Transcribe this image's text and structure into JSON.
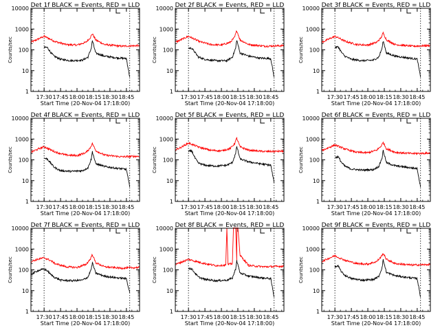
{
  "chart_data": [
    {
      "type": "line",
      "title": "Det 1f BLACK = Events, RED = LLD",
      "xlabel": "Start Time (20-Nov-04 17:18:00)",
      "ylabel": "Counts/sec",
      "ylim": [
        1,
        10000
      ],
      "yscale": "log",
      "xlim": [
        "17:18",
        "18:57"
      ],
      "x_ticks": [
        "17:30",
        "17:45",
        "18:00",
        "18:15",
        "18:30",
        "18:45"
      ],
      "y_ticks": [
        "1",
        "10",
        "100",
        "1000",
        "10000"
      ],
      "vlines": [
        "17:30",
        "18:48"
      ],
      "colors": {
        "events": "#000000",
        "lld": "#ff0000"
      },
      "series": [
        {
          "name": "Events",
          "color": "#000000",
          "x": [
            "17:30",
            "17:33",
            "17:36",
            "17:39",
            "17:45",
            "17:55",
            "18:05",
            "18:10",
            "18:13",
            "18:14",
            "18:17",
            "18:25",
            "18:35",
            "18:45",
            "18:48"
          ],
          "y": [
            130,
            130,
            75,
            50,
            35,
            30,
            32,
            45,
            120,
            280,
            70,
            50,
            42,
            38,
            5
          ]
        },
        {
          "name": "LLD",
          "color": "#ff0000",
          "x": [
            "17:18",
            "17:24",
            "17:30",
            "17:33",
            "17:40",
            "17:50",
            "18:00",
            "18:08",
            "18:12",
            "18:14",
            "18:17",
            "18:25",
            "18:40",
            "18:57"
          ],
          "y": [
            230,
            320,
            450,
            380,
            250,
            180,
            170,
            230,
            380,
            600,
            300,
            180,
            150,
            160
          ]
        }
      ]
    },
    {
      "type": "line",
      "title": "Det 2f BLACK = Events, RED = LLD",
      "xlabel": "Start Time (20-Nov-04 17:18:00)",
      "ylabel": "Counts/sec",
      "ylim": [
        1,
        10000
      ],
      "yscale": "log",
      "xlim": [
        "17:18",
        "18:57"
      ],
      "x_ticks": [
        "17:30",
        "17:45",
        "18:00",
        "18:15",
        "18:30",
        "18:45"
      ],
      "y_ticks": [
        "1",
        "10",
        "100",
        "1000",
        "10000"
      ],
      "vlines": [
        "17:30",
        "18:48"
      ],
      "colors": {
        "events": "#000000",
        "lld": "#ff0000"
      },
      "series": [
        {
          "name": "Events",
          "color": "#000000",
          "x": [
            "17:30",
            "17:33",
            "17:36",
            "17:39",
            "17:45",
            "17:55",
            "18:05",
            "18:10",
            "18:13",
            "18:14",
            "18:17",
            "18:25",
            "18:35",
            "18:45",
            "18:48"
          ],
          "y": [
            120,
            120,
            75,
            45,
            35,
            30,
            30,
            45,
            120,
            300,
            70,
            50,
            40,
            38,
            5
          ]
        },
        {
          "name": "LLD",
          "color": "#ff0000",
          "x": [
            "17:18",
            "17:24",
            "17:30",
            "17:33",
            "17:40",
            "17:50",
            "18:00",
            "18:08",
            "18:12",
            "18:14",
            "18:17",
            "18:25",
            "18:40",
            "18:57"
          ],
          "y": [
            230,
            320,
            450,
            380,
            250,
            180,
            170,
            230,
            400,
            850,
            300,
            180,
            150,
            160
          ]
        }
      ]
    },
    {
      "type": "line",
      "title": "Det 3f BLACK = Events, RED = LLD",
      "xlabel": "Start Time (20-Nov-04 17:18:00)",
      "ylabel": "Counts/sec",
      "ylim": [
        1,
        10000
      ],
      "yscale": "log",
      "xlim": [
        "17:18",
        "18:57"
      ],
      "x_ticks": [
        "17:30",
        "17:45",
        "18:00",
        "18:15",
        "18:30",
        "18:45"
      ],
      "y_ticks": [
        "1",
        "10",
        "100",
        "1000",
        "10000"
      ],
      "vlines": [
        "17:30",
        "18:48"
      ],
      "colors": {
        "events": "#000000",
        "lld": "#ff0000"
      },
      "series": [
        {
          "name": "Events",
          "color": "#000000",
          "x": [
            "17:30",
            "17:33",
            "17:36",
            "17:39",
            "17:45",
            "17:55",
            "18:05",
            "18:10",
            "18:13",
            "18:14",
            "18:17",
            "18:25",
            "18:35",
            "18:45",
            "18:48"
          ],
          "y": [
            130,
            140,
            75,
            50,
            35,
            30,
            32,
            45,
            120,
            270,
            70,
            50,
            42,
            36,
            5
          ]
        },
        {
          "name": "LLD",
          "color": "#ff0000",
          "x": [
            "17:18",
            "17:24",
            "17:30",
            "17:33",
            "17:40",
            "17:50",
            "18:00",
            "18:08",
            "18:12",
            "18:14",
            "18:17",
            "18:25",
            "18:40",
            "18:57"
          ],
          "y": [
            230,
            320,
            450,
            380,
            250,
            180,
            170,
            230,
            380,
            650,
            300,
            180,
            150,
            160
          ]
        }
      ]
    },
    {
      "type": "line",
      "title": "Det 4f BLACK = Events, RED = LLD",
      "xlabel": "Start Time (20-Nov-04 17:18:00)",
      "ylabel": "Counts/sec",
      "ylim": [
        1,
        10000
      ],
      "yscale": "log",
      "xlim": [
        "17:18",
        "18:57"
      ],
      "x_ticks": [
        "17:30",
        "17:45",
        "18:00",
        "18:15",
        "18:30",
        "18:45"
      ],
      "y_ticks": [
        "1",
        "10",
        "100",
        "1000",
        "10000"
      ],
      "vlines": [
        "17:30",
        "18:48"
      ],
      "colors": {
        "events": "#000000",
        "lld": "#ff0000"
      },
      "series": [
        {
          "name": "Events",
          "color": "#000000",
          "x": [
            "17:30",
            "17:33",
            "17:36",
            "17:39",
            "17:45",
            "17:55",
            "18:05",
            "18:10",
            "18:13",
            "18:14",
            "18:17",
            "18:25",
            "18:35",
            "18:45",
            "18:48"
          ],
          "y": [
            120,
            110,
            70,
            45,
            30,
            28,
            30,
            42,
            110,
            250,
            65,
            48,
            40,
            35,
            5
          ]
        },
        {
          "name": "LLD",
          "color": "#ff0000",
          "x": [
            "17:18",
            "17:24",
            "17:30",
            "17:33",
            "17:40",
            "17:50",
            "18:00",
            "18:08",
            "18:12",
            "18:14",
            "18:17",
            "18:25",
            "18:40",
            "18:57"
          ],
          "y": [
            230,
            320,
            430,
            360,
            240,
            170,
            160,
            220,
            380,
            620,
            280,
            170,
            140,
            150
          ]
        }
      ]
    },
    {
      "type": "line",
      "title": "Det 5f BLACK = Events, RED = LLD",
      "xlabel": "Start Time (20-Nov-04 17:18:00)",
      "ylabel": "Counts/sec",
      "ylim": [
        1,
        10000
      ],
      "yscale": "log",
      "xlim": [
        "17:18",
        "18:57"
      ],
      "x_ticks": [
        "17:30",
        "17:45",
        "18:00",
        "18:15",
        "18:30",
        "18:45"
      ],
      "y_ticks": [
        "1",
        "10",
        "100",
        "1000",
        "10000"
      ],
      "vlines": [
        "17:30",
        "18:48"
      ],
      "colors": {
        "events": "#000000",
        "lld": "#ff0000"
      },
      "series": [
        {
          "name": "Events",
          "color": "#000000",
          "x": [
            "17:30",
            "17:33",
            "17:36",
            "17:39",
            "17:45",
            "17:55",
            "18:05",
            "18:10",
            "18:13",
            "18:14",
            "18:17",
            "18:25",
            "18:35",
            "18:45",
            "18:48"
          ],
          "y": [
            250,
            270,
            120,
            70,
            55,
            50,
            55,
            75,
            200,
            450,
            110,
            80,
            65,
            55,
            8
          ]
        },
        {
          "name": "LLD",
          "color": "#ff0000",
          "x": [
            "17:18",
            "17:24",
            "17:30",
            "17:33",
            "17:40",
            "17:50",
            "18:00",
            "18:08",
            "18:12",
            "18:14",
            "18:17",
            "18:25",
            "18:40",
            "18:57"
          ],
          "y": [
            300,
            420,
            650,
            560,
            400,
            290,
            270,
            350,
            600,
            1100,
            420,
            290,
            250,
            260
          ]
        }
      ]
    },
    {
      "type": "line",
      "title": "Det 6f BLACK = Events, RED = LLD",
      "xlabel": "Start Time (20-Nov-04 17:18:00)",
      "ylabel": "Counts/sec",
      "ylim": [
        1,
        10000
      ],
      "yscale": "log",
      "xlim": [
        "17:18",
        "18:57"
      ],
      "x_ticks": [
        "17:30",
        "17:45",
        "18:00",
        "18:15",
        "18:30",
        "18:45"
      ],
      "y_ticks": [
        "1",
        "10",
        "100",
        "1000",
        "10000"
      ],
      "vlines": [
        "17:30",
        "18:48"
      ],
      "colors": {
        "events": "#000000",
        "lld": "#ff0000"
      },
      "series": [
        {
          "name": "Events",
          "color": "#000000",
          "x": [
            "17:30",
            "17:33",
            "17:36",
            "17:39",
            "17:45",
            "17:55",
            "18:05",
            "18:10",
            "18:13",
            "18:14",
            "18:17",
            "18:25",
            "18:35",
            "18:45",
            "18:48"
          ],
          "y": [
            130,
            140,
            75,
            50,
            36,
            32,
            34,
            48,
            125,
            280,
            72,
            52,
            44,
            38,
            5
          ]
        },
        {
          "name": "LLD",
          "color": "#ff0000",
          "x": [
            "17:18",
            "17:24",
            "17:30",
            "17:33",
            "17:40",
            "17:50",
            "18:00",
            "18:08",
            "18:12",
            "18:14",
            "18:17",
            "18:25",
            "18:40",
            "18:57"
          ],
          "y": [
            280,
            380,
            520,
            450,
            320,
            230,
            220,
            290,
            450,
            680,
            340,
            230,
            200,
            210
          ]
        }
      ]
    },
    {
      "type": "line",
      "title": "Det 7f BLACK = Events, RED = LLD",
      "xlabel": "Start Time (20-Nov-04 17:18:00)",
      "ylabel": "Counts/sec",
      "ylim": [
        1,
        10000
      ],
      "yscale": "log",
      "xlim": [
        "17:18",
        "18:57"
      ],
      "x_ticks": [
        "17:30",
        "17:45",
        "18:00",
        "18:15",
        "18:30",
        "18:45"
      ],
      "y_ticks": [
        "1",
        "10",
        "100",
        "1000",
        "10000"
      ],
      "vlines": [
        "17:30",
        "18:48"
      ],
      "colors": {
        "events": "#000000",
        "lld": "#ff0000"
      },
      "series": [
        {
          "name": "Events",
          "color": "#000000",
          "x": [
            "17:18",
            "17:24",
            "17:30",
            "17:33",
            "17:36",
            "17:39",
            "17:45",
            "17:55",
            "18:05",
            "18:10",
            "18:13",
            "18:14",
            "18:17",
            "18:25",
            "18:35",
            "18:45",
            "18:48"
          ],
          "y": [
            60,
            90,
            110,
            90,
            60,
            45,
            32,
            30,
            32,
            45,
            110,
            220,
            70,
            50,
            42,
            38,
            8
          ]
        },
        {
          "name": "LLD",
          "color": "#ff0000",
          "x": [
            "17:18",
            "17:24",
            "17:30",
            "17:36",
            "17:40",
            "17:50",
            "18:00",
            "18:08",
            "18:12",
            "18:14",
            "18:17",
            "18:25",
            "18:40",
            "18:57"
          ],
          "y": [
            250,
            320,
            380,
            280,
            200,
            140,
            130,
            180,
            320,
            550,
            220,
            140,
            120,
            130
          ]
        }
      ]
    },
    {
      "type": "line",
      "title": "Det 8f BLACK = Events, RED = LLD",
      "xlabel": "Start Time (20-Nov-04 17:18:00)",
      "ylabel": "Counts/sec",
      "ylim": [
        1,
        10000
      ],
      "yscale": "log",
      "xlim": [
        "17:18",
        "18:57"
      ],
      "x_ticks": [
        "17:30",
        "17:45",
        "18:00",
        "18:15",
        "18:30",
        "18:45"
      ],
      "y_ticks": [
        "1",
        "10",
        "100",
        "1000",
        "10000"
      ],
      "vlines": [
        "17:30",
        "18:48"
      ],
      "colors": {
        "events": "#000000",
        "lld": "#ff0000"
      },
      "series": [
        {
          "name": "Events",
          "color": "#000000",
          "x": [
            "17:30",
            "17:33",
            "17:36",
            "17:39",
            "17:45",
            "17:55",
            "18:05",
            "18:10",
            "18:13",
            "18:14",
            "18:17",
            "18:25",
            "18:35",
            "18:45",
            "18:48"
          ],
          "y": [
            120,
            110,
            70,
            45,
            35,
            30,
            32,
            40,
            110,
            280,
            70,
            50,
            42,
            38,
            5
          ]
        },
        {
          "name": "LLD",
          "color": "#ff0000",
          "x": [
            "17:18",
            "17:24",
            "17:30",
            "17:36",
            "17:45",
            "17:55",
            "18:04",
            "18:05",
            "18:06",
            "18:10",
            "18:11",
            "18:12",
            "18:13",
            "18:14",
            "18:14",
            "18:15",
            "18:17",
            "18:25",
            "18:40",
            "18:57"
          ],
          "y": [
            180,
            240,
            320,
            260,
            200,
            160,
            170,
            12000,
            180,
            200,
            12000,
            12000,
            12000,
            260,
            12000,
            12000,
            500,
            160,
            140,
            150
          ]
        }
      ]
    },
    {
      "type": "line",
      "title": "Det 9f BLACK = Events, RED = LLD",
      "xlabel": "Start Time (20-Nov-04 17:18:00)",
      "ylabel": "Counts/sec",
      "ylim": [
        1,
        10000
      ],
      "yscale": "log",
      "xlim": [
        "17:18",
        "18:57"
      ],
      "x_ticks": [
        "17:30",
        "17:45",
        "18:00",
        "18:15",
        "18:30",
        "18:45"
      ],
      "y_ticks": [
        "1",
        "10",
        "100",
        "1000",
        "10000"
      ],
      "vlines": [
        "17:30",
        "18:48"
      ],
      "colors": {
        "events": "#000000",
        "lld": "#ff0000"
      },
      "series": [
        {
          "name": "Events",
          "color": "#000000",
          "x": [
            "17:30",
            "17:33",
            "17:36",
            "17:39",
            "17:45",
            "17:55",
            "18:05",
            "18:10",
            "18:13",
            "18:14",
            "18:17",
            "18:25",
            "18:35",
            "18:45",
            "18:48"
          ],
          "y": [
            140,
            150,
            80,
            55,
            38,
            32,
            34,
            48,
            130,
            300,
            75,
            52,
            44,
            38,
            5
          ]
        },
        {
          "name": "LLD",
          "color": "#ff0000",
          "x": [
            "17:18",
            "17:24",
            "17:30",
            "17:33",
            "17:40",
            "17:50",
            "18:00",
            "18:08",
            "18:12",
            "18:14",
            "18:17",
            "18:25",
            "18:40",
            "18:57"
          ],
          "y": [
            250,
            350,
            480,
            400,
            280,
            200,
            190,
            250,
            420,
            620,
            320,
            200,
            170,
            180
          ]
        }
      ]
    }
  ]
}
